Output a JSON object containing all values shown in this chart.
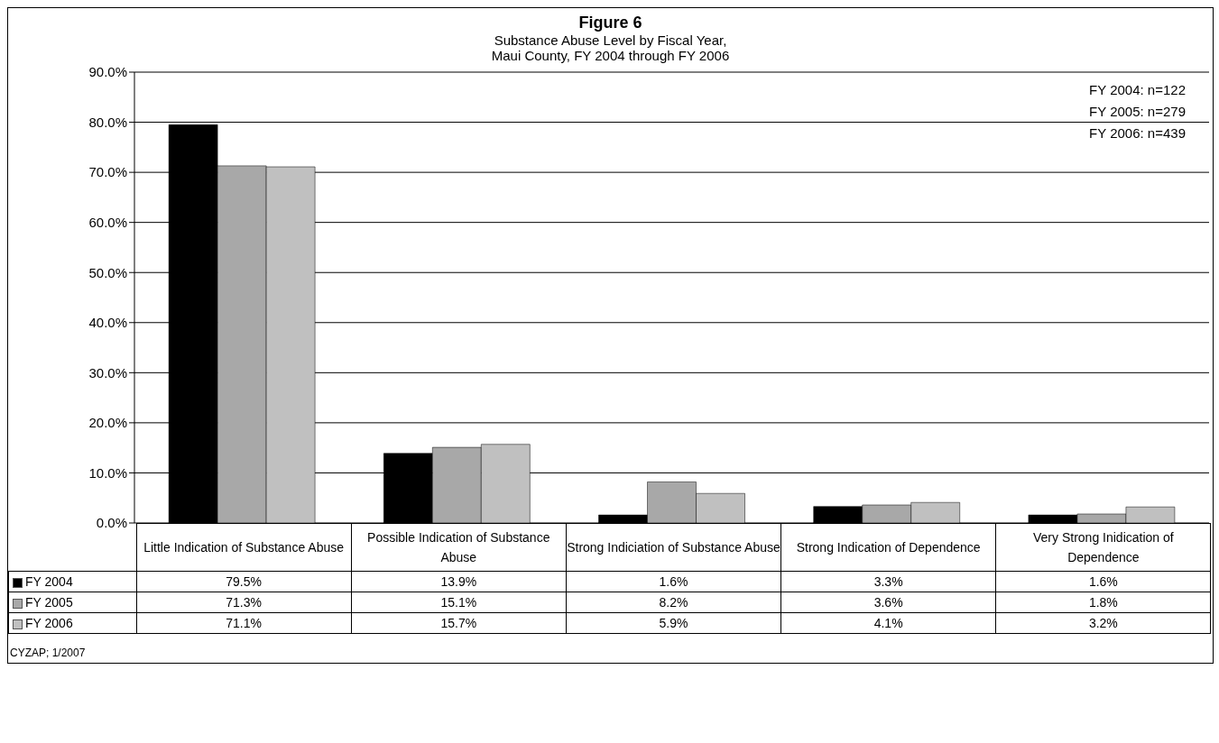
{
  "chart_data": {
    "type": "bar",
    "title": "Figure 6",
    "subtitle": "Substance Abuse Level by Fiscal Year,\nMaui County, FY 2004 through FY 2006",
    "categories": [
      "Little Indication of Substance Abuse",
      "Possible Indication of Substance Abuse",
      "Strong Indiciation of Substance Abuse",
      "Strong Indication of Dependence",
      "Very Strong Inidication of Dependence"
    ],
    "series": [
      {
        "name": "FY 2004",
        "color": "#000000",
        "values": [
          79.5,
          13.9,
          1.6,
          3.3,
          1.6
        ],
        "value_labels": [
          "79.5%",
          "13.9%",
          "1.6%",
          "3.3%",
          "1.6%"
        ]
      },
      {
        "name": "FY 2005",
        "color": "#a8a8a8",
        "values": [
          71.3,
          15.1,
          8.2,
          3.6,
          1.8
        ],
        "value_labels": [
          "71.3%",
          "15.1%",
          "8.2%",
          "3.6%",
          "1.8%"
        ]
      },
      {
        "name": "FY 2006",
        "color": "#c0c0c0",
        "values": [
          71.1,
          15.7,
          5.9,
          4.1,
          3.2
        ],
        "value_labels": [
          "71.1%",
          "15.7%",
          "5.9%",
          "4.1%",
          "3.2%"
        ]
      }
    ],
    "ylim": [
      0,
      90
    ],
    "yticks": [
      {
        "value": 0,
        "label": "0.0%"
      },
      {
        "value": 10,
        "label": "10.0%"
      },
      {
        "value": 20,
        "label": "20.0%"
      },
      {
        "value": 30,
        "label": "30.0%"
      },
      {
        "value": 40,
        "label": "40.0%"
      },
      {
        "value": 50,
        "label": "50.0%"
      },
      {
        "value": 60,
        "label": "60.0%"
      },
      {
        "value": 70,
        "label": "70.0%"
      },
      {
        "value": 80,
        "label": "80.0%"
      },
      {
        "value": 90,
        "label": "90.0%"
      }
    ],
    "grid": "y",
    "legend": "bottom",
    "annotations": [
      "FY 2004: n=122",
      "FY 2005: n=279",
      "FY 2006: n=439",
      "CYZAP; 1/2007"
    ]
  }
}
